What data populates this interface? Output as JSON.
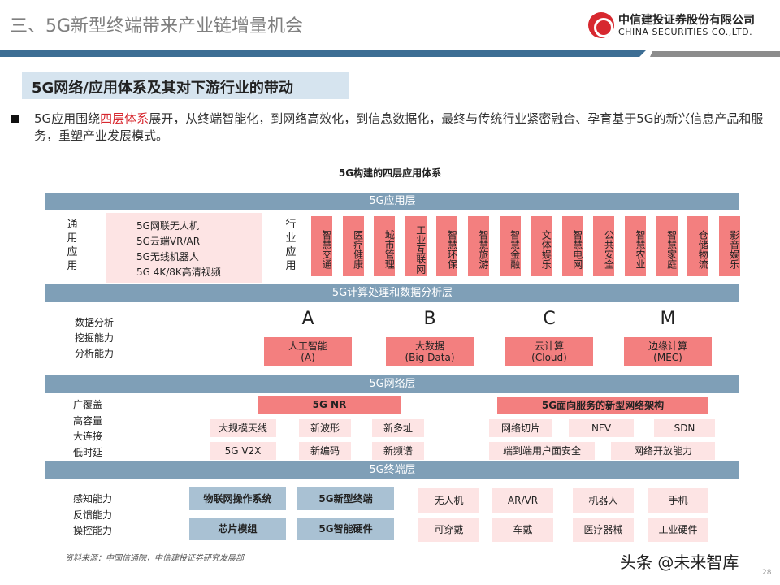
{
  "header": {
    "title": "三、5G新型终端带来产业链增量机会",
    "logo_cn": "中信建投证券股份有限公司",
    "logo_en": "CHINA SECURITIES CO.,LTD.",
    "accent": "#3d6e94",
    "brand_red": "#d7282f"
  },
  "subtitle": "5G网络/应用体系及其对下游行业的带动",
  "bullet": {
    "pre": "5G应用围绕",
    "highlight": "四层体系",
    "post": "展开，从终端智能化，到网络高效化，到信息数据化，最终与传统行业紧密融合、孕育基于5G的新兴信息产品和服务，重塑产业发展模式。"
  },
  "diagram": {
    "title": "5G构建的四层应用体系",
    "app_layer": {
      "label": "5G应用层",
      "general_label": "通用应用",
      "general_items": [
        "5G网联无人机",
        "5G云端VR/AR",
        "5G无线机器人",
        "5G 4K/8K高清视频"
      ],
      "industry_label": "行业应用",
      "industry_items": [
        "智慧交通",
        "医疗健康",
        "城市管理",
        "工业互联网",
        "智慧环保",
        "智慧旅游",
        "智慧金融",
        "文体娱乐",
        "智慧电网",
        "公共安全",
        "智慧农业",
        "智慧家庭",
        "仓储物流",
        "影音娱乐"
      ]
    },
    "compute_layer": {
      "label": "5G计算处理和数据分析层",
      "side_labels": [
        "数据分析",
        "挖掘能力",
        "分析能力"
      ],
      "letters": [
        "A",
        "B",
        "C",
        "M"
      ],
      "items": [
        {
          "name": "人工智能",
          "sub": "(A)"
        },
        {
          "name": "大数据",
          "sub": "(Big Data)"
        },
        {
          "name": "云计算",
          "sub": "(Cloud)"
        },
        {
          "name": "边缘计算",
          "sub": "(MEC)"
        }
      ]
    },
    "network_layer": {
      "label": "5G网络层",
      "side_labels": [
        "广覆盖",
        "高容量",
        "大连接",
        "低时延"
      ],
      "nr": "5G NR",
      "sba": "5G面向服务的新型网络架构",
      "nr_items": [
        "大规模天线",
        "新波形",
        "新多址",
        "5G V2X",
        "新编码",
        "新频谱"
      ],
      "sba_items": [
        "网络切片",
        "NFV",
        "SDN",
        "端到端用户面安全",
        "网络开放能力"
      ]
    },
    "terminal_layer": {
      "label": "5G终端层",
      "side_labels": [
        "感知能力",
        "反馈能力",
        "操控能力"
      ],
      "core_items": [
        "物联网操作系统",
        "5G新型终端",
        "芯片模组",
        "5G智能硬件"
      ],
      "devices": [
        "无人机",
        "AR/VR",
        "机器人",
        "手机",
        "可穿戴",
        "车戴",
        "医疗器械",
        "工业硬件"
      ]
    }
  },
  "footer": {
    "source": "资料来源：中国信通院，中信建投证券研究发展部",
    "watermark": "头条 @未来智库",
    "page": "28"
  }
}
